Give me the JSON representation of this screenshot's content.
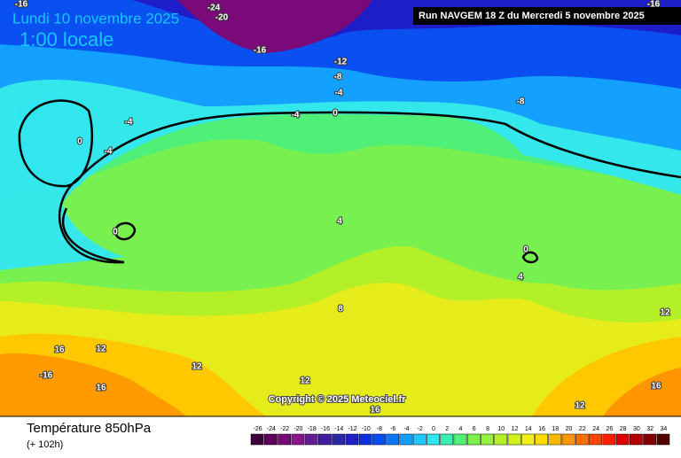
{
  "header": {
    "date": "Lundi 10 novembre 2025",
    "time": "1:00 locale",
    "run": "Run NAVGEM 18 Z du Mercredi 5 novembre 2025"
  },
  "map": {
    "contour_labels": [
      -16,
      -24,
      -20,
      -16,
      -12,
      -8,
      -4,
      0,
      -4,
      -8,
      -4,
      0,
      -4,
      0,
      4,
      0,
      4,
      8,
      12,
      16,
      12,
      12,
      -16,
      16,
      12,
      16,
      12,
      16,
      -16
    ],
    "copyright": "Copyright © 2025 Meteociel.fr"
  },
  "footer": {
    "title": "Température 850hPa",
    "lead": "(+ 102h)"
  },
  "legend": {
    "ticks": [
      -26,
      -24,
      -22,
      -20,
      -18,
      -16,
      -14,
      -12,
      -10,
      -8,
      -6,
      -4,
      -2,
      0,
      2,
      4,
      6,
      8,
      10,
      12,
      14,
      16,
      18,
      20,
      22,
      24,
      26,
      28,
      30,
      32,
      34
    ],
    "colors": [
      "#3d0038",
      "#5c005c",
      "#7a0a7a",
      "#8a148a",
      "#641e96",
      "#3c1e9e",
      "#2828a8",
      "#1e1ec8",
      "#0a32dc",
      "#0050f0",
      "#0a78f5",
      "#14a0ff",
      "#1ec8ff",
      "#32e6f0",
      "#3cf0b4",
      "#50f078",
      "#78f050",
      "#96f03c",
      "#b4f028",
      "#d2f01e",
      "#f0f014",
      "#ffdc00",
      "#ffb400",
      "#ff9600",
      "#ff6e00",
      "#ff4600",
      "#ff1e00",
      "#dc0000",
      "#b40000",
      "#820000",
      "#500000"
    ]
  }
}
